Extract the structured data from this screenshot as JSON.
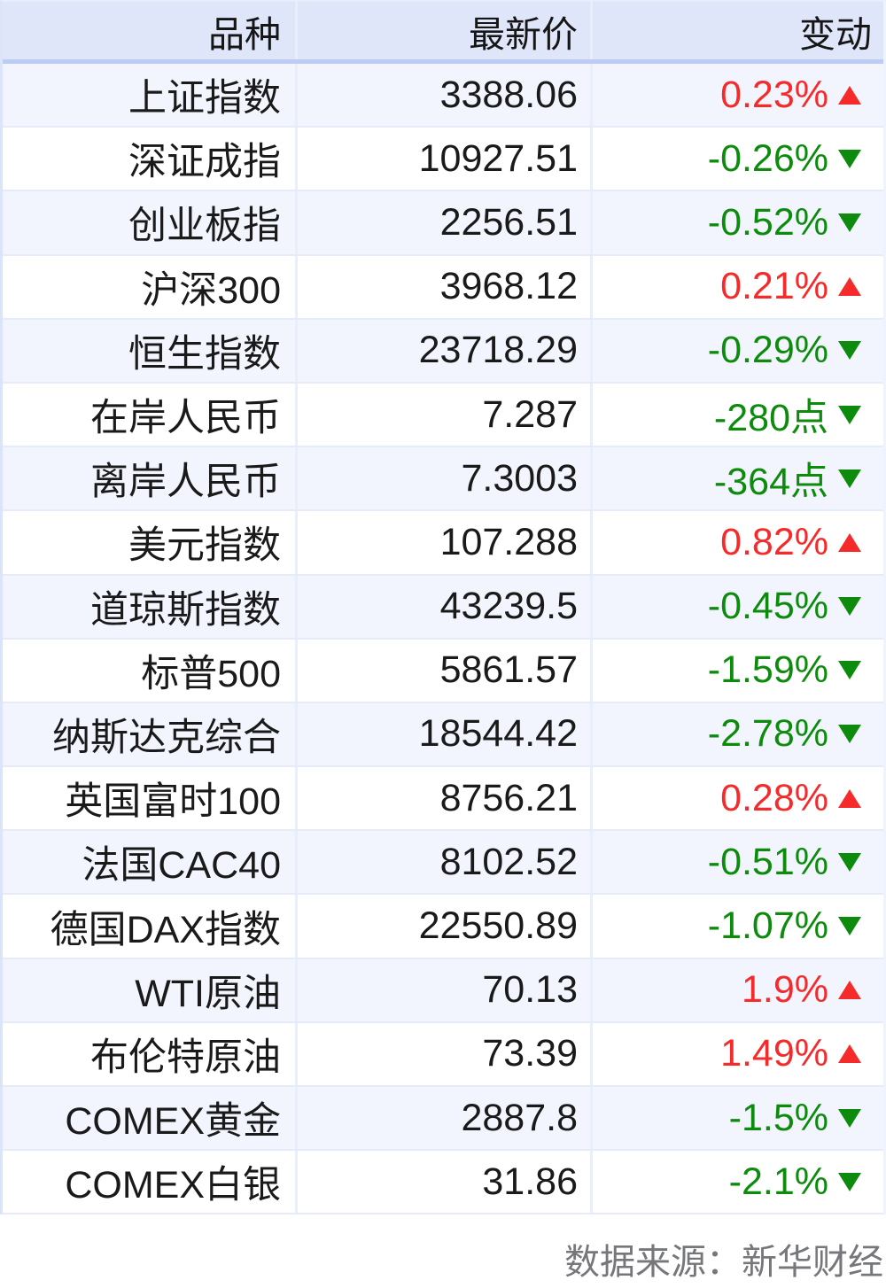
{
  "chart_data": {
    "type": "table",
    "columns": {
      "product": "品种",
      "price": "最新价",
      "change": "变动"
    },
    "rows": [
      {
        "name": "上证指数",
        "price": "3388.06",
        "change": "0.23%",
        "direction": "up"
      },
      {
        "name": "深证成指",
        "price": "10927.51",
        "change": "-0.26%",
        "direction": "down"
      },
      {
        "name": "创业板指",
        "price": "2256.51",
        "change": "-0.52%",
        "direction": "down"
      },
      {
        "name": "沪深300",
        "price": "3968.12",
        "change": "0.21%",
        "direction": "up"
      },
      {
        "name": "恒生指数",
        "price": "23718.29",
        "change": "-0.29%",
        "direction": "down"
      },
      {
        "name": "在岸人民币",
        "price": "7.287",
        "change": "-280点",
        "direction": "down"
      },
      {
        "name": "离岸人民币",
        "price": "7.3003",
        "change": "-364点",
        "direction": "down"
      },
      {
        "name": "美元指数",
        "price": "107.288",
        "change": "0.82%",
        "direction": "up"
      },
      {
        "name": "道琼斯指数",
        "price": "43239.5",
        "change": "-0.45%",
        "direction": "down"
      },
      {
        "name": "标普500",
        "price": "5861.57",
        "change": "-1.59%",
        "direction": "down"
      },
      {
        "name": "纳斯达克综合",
        "price": "18544.42",
        "change": "-2.78%",
        "direction": "down"
      },
      {
        "name": "英国富时100",
        "price": "8756.21",
        "change": "0.28%",
        "direction": "up"
      },
      {
        "name": "法国CAC40",
        "price": "8102.52",
        "change": "-0.51%",
        "direction": "down"
      },
      {
        "name": "德国DAX指数",
        "price": "22550.89",
        "change": "-1.07%",
        "direction": "down"
      },
      {
        "name": "WTI原油",
        "price": "70.13",
        "change": "1.9%",
        "direction": "up"
      },
      {
        "name": "布伦特原油",
        "price": "73.39",
        "change": "1.49%",
        "direction": "up"
      },
      {
        "name": "COMEX黄金",
        "price": "2887.8",
        "change": "-1.5%",
        "direction": "down"
      },
      {
        "name": "COMEX白银",
        "price": "31.86",
        "change": "-2.1%",
        "direction": "down"
      }
    ]
  },
  "footer": {
    "source_label": "数据来源：新华财经"
  },
  "colors": {
    "up_red": "#f52a2a",
    "down_green": "#0d8b0d",
    "header_bg": "#e0e6fa",
    "header_border": "#bdccf2",
    "row_stripe": "#f2f5fd",
    "footer_text": "#76777b"
  }
}
